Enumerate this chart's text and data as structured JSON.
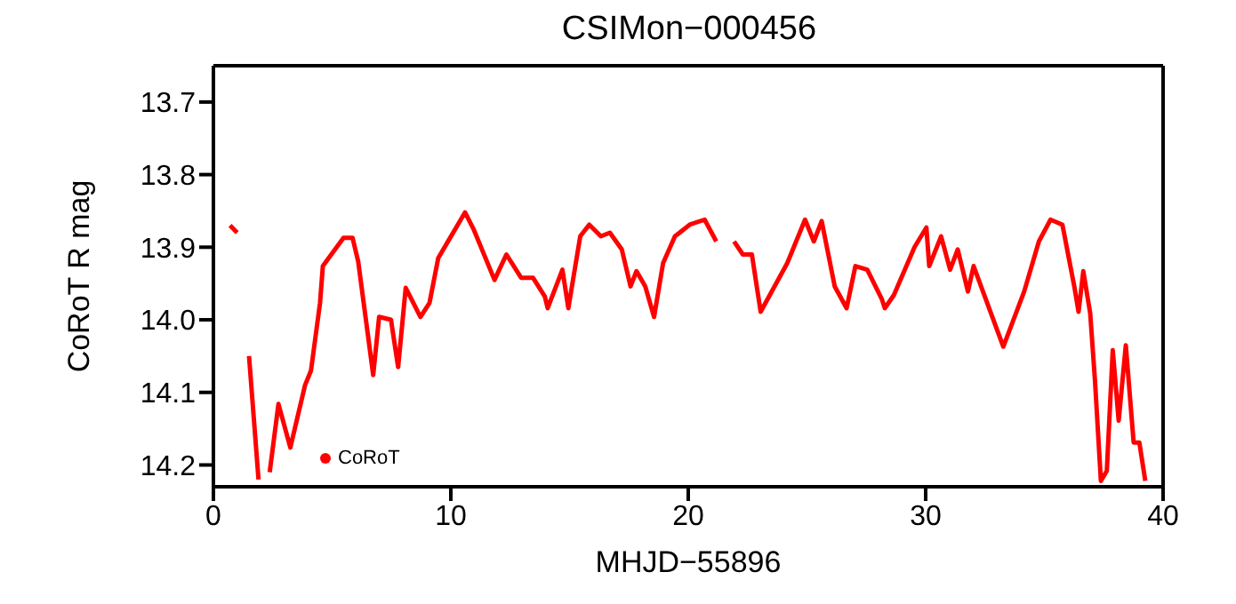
{
  "chart_data": {
    "type": "line",
    "title": "CSIMon−000456",
    "xlabel": "MHJD−55896",
    "ylabel": "CoRoT R mag",
    "xlim": [
      0,
      40
    ],
    "xticks": [
      0,
      10,
      20,
      30,
      40
    ],
    "ylim": [
      14.23,
      13.65
    ],
    "yticks": [
      13.7,
      13.8,
      13.9,
      {
        "value": 14.0,
        "label": "14.0"
      },
      14.1,
      14.2
    ],
    "legend": "bottom left",
    "marker": "none",
    "line_style": "solid",
    "series": [
      {
        "name": "CoRoT",
        "color": "#ff0000",
        "x": [
          0.7,
          1.0,
          1.2,
          1.5,
          1.9,
          2.1,
          2.37,
          2.74,
          3.24,
          3.86,
          4.11,
          4.49,
          4.61,
          5.48,
          5.86,
          6.1,
          6.73,
          6.98,
          7.48,
          7.78,
          8.1,
          8.72,
          9.1,
          9.47,
          10.6,
          10.97,
          11.84,
          12.34,
          12.96,
          13.46,
          13.96,
          14.08,
          14.7,
          14.95,
          15.45,
          15.83,
          16.32,
          16.7,
          17.2,
          17.57,
          17.82,
          18.19,
          18.56,
          18.94,
          19.44,
          20.06,
          20.69,
          21.18,
          21.5,
          21.93,
          22.3,
          22.68,
          23.05,
          24.17,
          24.92,
          25.29,
          25.62,
          26.17,
          26.67,
          27.04,
          27.54,
          28.16,
          28.28,
          28.66,
          29.53,
          30.03,
          30.15,
          30.65,
          31.03,
          31.35,
          31.78,
          32.02,
          33.27,
          34.15,
          34.77,
          35.26,
          35.76,
          36.26,
          36.44,
          36.64,
          36.93,
          37.13,
          37.38,
          37.63,
          37.88,
          38.13,
          38.43,
          38.76,
          39.0,
          39.25
        ],
        "values": [
          13.87,
          13.88,
          null,
          14.05,
          14.22,
          null,
          14.21,
          14.116,
          14.176,
          14.09,
          14.07,
          13.977,
          13.926,
          13.887,
          13.887,
          13.92,
          14.076,
          13.996,
          14.0,
          14.065,
          13.956,
          13.996,
          13.977,
          13.915,
          13.852,
          13.876,
          13.945,
          13.91,
          13.942,
          13.942,
          13.968,
          13.984,
          13.931,
          13.984,
          13.885,
          13.869,
          13.885,
          13.88,
          13.903,
          13.954,
          13.933,
          13.954,
          13.996,
          13.922,
          13.885,
          13.869,
          13.862,
          13.892,
          null,
          13.892,
          13.91,
          13.91,
          13.989,
          13.922,
          13.862,
          13.892,
          13.864,
          13.954,
          13.984,
          13.926,
          13.931,
          13.972,
          13.984,
          13.966,
          13.9,
          13.873,
          13.926,
          13.885,
          13.931,
          13.903,
          13.961,
          13.926,
          14.037,
          13.961,
          13.892,
          13.862,
          13.869,
          13.954,
          13.989,
          13.933,
          13.991,
          14.083,
          14.222,
          14.208,
          14.042,
          14.139,
          14.035,
          14.169,
          14.169,
          14.222
        ]
      }
    ]
  }
}
